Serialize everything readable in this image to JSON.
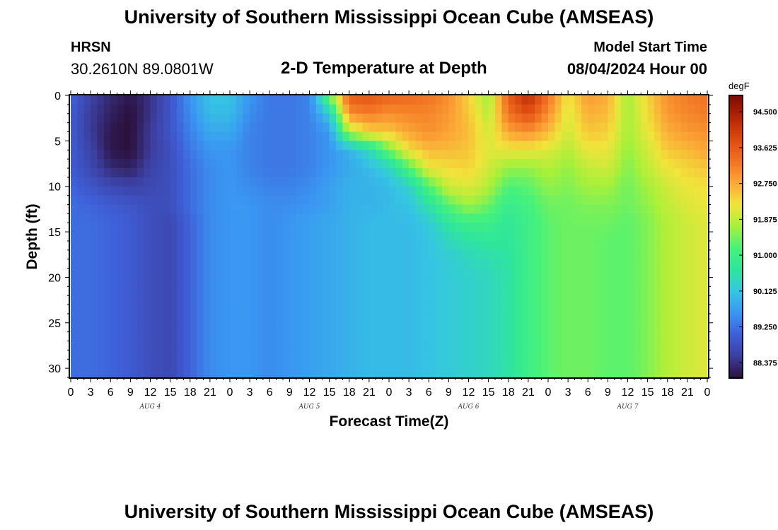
{
  "header": {
    "title": "University of Southern Mississippi Ocean Cube (AMSEAS)",
    "station": "HRSN",
    "coords": "30.2610N  89.0801W",
    "chart_title": "2-D Temperature at Depth",
    "model_start_label": "Model Start Time",
    "model_start_value": "08/04/2024 Hour 00"
  },
  "footer": {
    "title": "University of Southern Mississippi Ocean Cube (AMSEAS)"
  },
  "chart_data": {
    "type": "heatmap",
    "title": "2-D Temperature at Depth",
    "xlabel": "Forecast Time(Z)",
    "ylabel": "Depth (ft)",
    "x_tick_labels": [
      "0",
      "3",
      "6",
      "9",
      "12",
      "15",
      "18",
      "21",
      "0",
      "3",
      "6",
      "9",
      "12",
      "15",
      "18",
      "21",
      "0",
      "3",
      "6",
      "9",
      "12",
      "15",
      "18",
      "21",
      "0",
      "3",
      "6",
      "9",
      "12",
      "15",
      "18",
      "21",
      "0"
    ],
    "x_date_labels": [
      "AUG 4",
      "AUG 5",
      "AUG 6",
      "AUG 7"
    ],
    "x_range_hours": [
      0,
      96
    ],
    "y_ticks": [
      0,
      5,
      10,
      15,
      20,
      25,
      30
    ],
    "y_range": [
      0,
      31
    ],
    "y_inverted": true,
    "colorbar": {
      "unit": "degF",
      "ticks": [
        "94.500",
        "93.625",
        "92.750",
        "91.875",
        "91.000",
        "90.125",
        "89.250",
        "88.375"
      ],
      "range": [
        88.0,
        94.9
      ],
      "colors": [
        "#2b0f3a",
        "#3c3f9f",
        "#3f5fd8",
        "#3a96f2",
        "#35c6e2",
        "#2ee59d",
        "#47f27a",
        "#a8f03a",
        "#f1e43a",
        "#fba636",
        "#f17122",
        "#dd4a10",
        "#b12504",
        "#7b0b02"
      ]
    },
    "depths_ft": [
      0,
      2,
      4,
      6,
      8,
      10,
      12,
      14,
      16,
      18,
      20,
      24,
      28,
      31
    ],
    "times_hours": [
      0,
      3,
      6,
      9,
      12,
      15,
      18,
      21,
      24,
      27,
      30,
      33,
      36,
      39,
      42,
      45,
      48,
      51,
      54,
      57,
      60,
      63,
      66,
      69,
      72,
      75,
      78,
      81,
      84,
      87,
      90,
      93,
      96
    ],
    "temperature_profiles_degF": [
      [
        89.1,
        89.0,
        89.0,
        89.0,
        89.0,
        89.1,
        89.2,
        89.2,
        89.2,
        89.2,
        89.2,
        89.2,
        89.2,
        89.2
      ],
      [
        88.6,
        88.5,
        88.5,
        88.6,
        88.7,
        88.9,
        89.1,
        89.2,
        89.2,
        89.2,
        89.2,
        89.2,
        89.2,
        89.2
      ],
      [
        88.3,
        88.2,
        88.1,
        88.1,
        88.3,
        88.7,
        89.0,
        89.1,
        89.1,
        89.1,
        89.1,
        89.1,
        89.1,
        89.1
      ],
      [
        88.1,
        88.0,
        88.0,
        88.0,
        88.2,
        88.6,
        88.9,
        89.0,
        89.0,
        89.0,
        89.0,
        89.0,
        89.0,
        89.0
      ],
      [
        88.4,
        88.4,
        88.5,
        88.5,
        88.6,
        88.7,
        88.8,
        88.8,
        88.8,
        88.8,
        88.8,
        88.8,
        88.8,
        88.8
      ],
      [
        88.9,
        88.9,
        88.9,
        88.8,
        88.8,
        88.8,
        88.8,
        88.7,
        88.7,
        88.7,
        88.7,
        88.7,
        88.7,
        88.7
      ],
      [
        89.6,
        89.5,
        89.4,
        89.3,
        89.2,
        89.2,
        89.2,
        89.1,
        89.1,
        89.1,
        89.1,
        89.1,
        89.1,
        89.1
      ],
      [
        90.1,
        90.0,
        89.8,
        89.6,
        89.5,
        89.5,
        89.5,
        89.5,
        89.5,
        89.5,
        89.5,
        89.5,
        89.5,
        89.5
      ],
      [
        90.1,
        90.0,
        89.8,
        89.6,
        89.6,
        89.6,
        89.6,
        89.6,
        89.6,
        89.6,
        89.6,
        89.6,
        89.6,
        89.6
      ],
      [
        89.6,
        89.5,
        89.4,
        89.4,
        89.4,
        89.5,
        89.6,
        89.6,
        89.6,
        89.6,
        89.6,
        89.6,
        89.6,
        89.6
      ],
      [
        89.3,
        89.3,
        89.3,
        89.3,
        89.3,
        89.4,
        89.5,
        89.5,
        89.5,
        89.5,
        89.5,
        89.5,
        89.5,
        89.5
      ],
      [
        89.3,
        89.3,
        89.3,
        89.3,
        89.3,
        89.4,
        89.5,
        89.6,
        89.6,
        89.6,
        89.6,
        89.6,
        89.6,
        89.6
      ],
      [
        89.4,
        89.4,
        89.4,
        89.4,
        89.4,
        89.5,
        89.6,
        89.7,
        89.7,
        89.7,
        89.7,
        89.7,
        89.7,
        89.7
      ],
      [
        91.5,
        90.2,
        89.6,
        89.6,
        89.6,
        89.7,
        89.7,
        89.8,
        89.8,
        89.8,
        89.8,
        89.8,
        89.8,
        89.8
      ],
      [
        93.6,
        93.0,
        91.8,
        89.9,
        89.8,
        89.9,
        89.9,
        89.9,
        89.9,
        89.9,
        89.9,
        89.9,
        89.9,
        89.9
      ],
      [
        93.7,
        93.2,
        92.4,
        90.4,
        90.0,
        89.9,
        89.9,
        90.0,
        90.0,
        90.0,
        90.0,
        90.0,
        90.0,
        90.0
      ],
      [
        93.5,
        93.0,
        92.5,
        91.4,
        90.3,
        90.0,
        90.0,
        90.0,
        90.0,
        90.0,
        90.0,
        90.0,
        90.0,
        90.0
      ],
      [
        93.4,
        93.1,
        92.8,
        92.3,
        91.2,
        90.3,
        90.1,
        90.0,
        90.0,
        90.0,
        90.0,
        90.0,
        90.0,
        90.0
      ],
      [
        93.3,
        93.1,
        93.0,
        92.6,
        92.2,
        91.2,
        90.6,
        90.2,
        90.1,
        90.1,
        90.1,
        90.1,
        90.1,
        90.1
      ],
      [
        93.0,
        92.9,
        92.8,
        92.6,
        92.3,
        92.0,
        91.3,
        90.7,
        90.4,
        90.2,
        90.2,
        90.2,
        90.2,
        90.2
      ],
      [
        92.4,
        92.5,
        92.6,
        92.5,
        92.4,
        92.1,
        91.7,
        91.0,
        90.6,
        90.4,
        90.3,
        90.3,
        90.3,
        90.3
      ],
      [
        91.6,
        91.8,
        92.0,
        92.1,
        92.0,
        91.8,
        91.4,
        91.0,
        90.7,
        90.5,
        90.4,
        90.4,
        90.4,
        90.4
      ],
      [
        93.6,
        93.3,
        92.8,
        92.2,
        91.6,
        91.2,
        90.9,
        90.7,
        90.7,
        90.6,
        90.6,
        90.6,
        90.6,
        90.6
      ],
      [
        94.3,
        93.8,
        93.0,
        92.2,
        91.6,
        91.3,
        91.1,
        91.0,
        91.0,
        91.0,
        91.0,
        91.0,
        91.0,
        91.0
      ],
      [
        93.3,
        93.0,
        92.6,
        92.1,
        91.8,
        91.6,
        91.4,
        91.3,
        91.3,
        91.3,
        91.3,
        91.3,
        91.3,
        91.3
      ],
      [
        92.2,
        92.1,
        92.0,
        91.8,
        91.6,
        91.5,
        91.4,
        91.4,
        91.4,
        91.4,
        91.4,
        91.4,
        91.4,
        91.4
      ],
      [
        92.9,
        92.7,
        92.5,
        92.2,
        91.9,
        91.7,
        91.5,
        91.4,
        91.4,
        91.4,
        91.4,
        91.4,
        91.4,
        91.4
      ],
      [
        92.7,
        92.6,
        92.4,
        92.2,
        92.0,
        91.7,
        91.5,
        91.4,
        91.3,
        91.3,
        91.3,
        91.3,
        91.3,
        91.3
      ],
      [
        91.7,
        91.7,
        91.7,
        91.6,
        91.5,
        91.4,
        91.4,
        91.3,
        91.3,
        91.3,
        91.3,
        91.3,
        91.3,
        91.3
      ],
      [
        92.4,
        92.3,
        92.2,
        92.0,
        91.9,
        91.7,
        91.6,
        91.5,
        91.5,
        91.5,
        91.5,
        91.5,
        91.5,
        91.5
      ],
      [
        93.0,
        92.9,
        92.7,
        92.5,
        92.2,
        92.0,
        91.9,
        91.8,
        91.8,
        91.8,
        91.8,
        91.8,
        91.8,
        91.8
      ],
      [
        93.2,
        93.1,
        92.9,
        92.6,
        92.4,
        92.2,
        92.1,
        92.0,
        92.0,
        92.0,
        92.0,
        92.0,
        92.0,
        92.0
      ],
      [
        93.3,
        93.2,
        93.0,
        92.8,
        92.5,
        92.3,
        92.2,
        92.1,
        92.1,
        92.1,
        92.1,
        92.1,
        92.1,
        92.1
      ]
    ]
  }
}
